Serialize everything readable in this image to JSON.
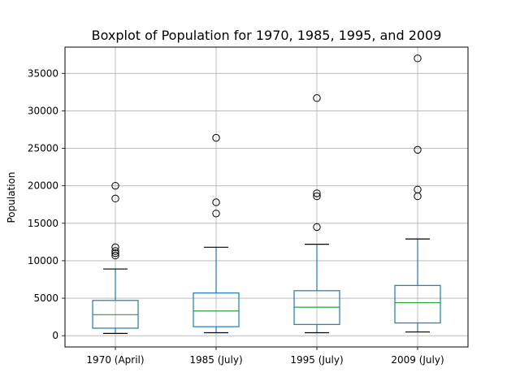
{
  "chart_data": {
    "type": "boxplot",
    "title": "Boxplot of Population for 1970, 1985, 1995, and 2009",
    "xlabel": "",
    "ylabel": "Population",
    "ylim": [
      -1500,
      38500
    ],
    "yticks": [
      0,
      5000,
      10000,
      15000,
      20000,
      25000,
      30000,
      35000
    ],
    "grid": true,
    "colors": {
      "box": "#1f77b4",
      "median": "#2ca02c",
      "grid": "#b0b0b0",
      "frame": "#000000"
    },
    "categories": [
      "1970 (April)",
      "1985 (July)",
      "1995 (July)",
      "2009 (July)"
    ],
    "boxes": [
      {
        "whisker_low": 300,
        "q1": 1000,
        "median": 2800,
        "q3": 4700,
        "whisker_high": 8900,
        "outliers": [
          10700,
          11000,
          11300,
          11800,
          18300,
          20000
        ]
      },
      {
        "whisker_low": 400,
        "q1": 1200,
        "median": 3300,
        "q3": 5700,
        "whisker_high": 11800,
        "outliers": [
          16300,
          17800,
          26400
        ]
      },
      {
        "whisker_low": 400,
        "q1": 1500,
        "median": 3800,
        "q3": 6000,
        "whisker_high": 12200,
        "outliers": [
          14500,
          18600,
          19000,
          31700
        ]
      },
      {
        "whisker_low": 500,
        "q1": 1700,
        "median": 4400,
        "q3": 6700,
        "whisker_high": 12900,
        "outliers": [
          18600,
          19500,
          24800,
          37000
        ]
      }
    ]
  }
}
